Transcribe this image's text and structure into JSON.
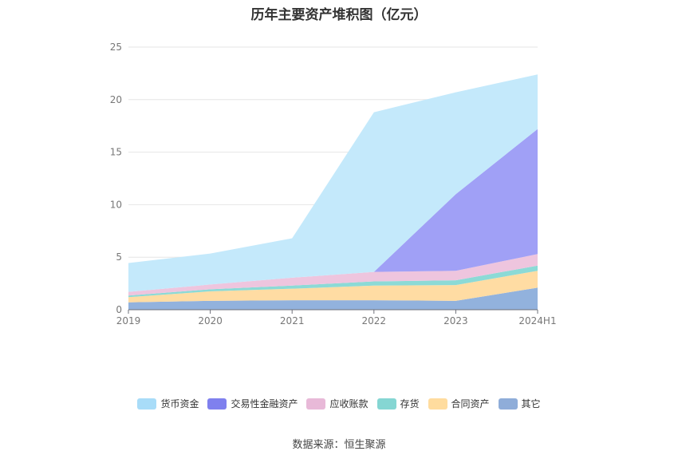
{
  "chart_data": {
    "type": "area",
    "stacked": true,
    "title": "历年主要资产堆积图（亿元）",
    "categories": [
      "2019",
      "2020",
      "2021",
      "2022",
      "2023",
      "2024H1"
    ],
    "ylim": [
      0,
      25
    ],
    "yticks": [
      0,
      5,
      10,
      15,
      20,
      25
    ],
    "grid": true,
    "legend_position": "bottom",
    "series": [
      {
        "name": "其它",
        "color": "#92b2dd",
        "values": [
          0.7,
          0.85,
          0.9,
          0.9,
          0.85,
          2.1
        ]
      },
      {
        "name": "合同资产",
        "color": "#ffdca3",
        "values": [
          0.5,
          0.9,
          1.1,
          1.4,
          1.5,
          1.6
        ]
      },
      {
        "name": "存货",
        "color": "#8cdad6",
        "values": [
          0.15,
          0.2,
          0.3,
          0.4,
          0.45,
          0.5
        ]
      },
      {
        "name": "应收账款",
        "color": "#eec5de",
        "values": [
          0.35,
          0.45,
          0.75,
          0.9,
          0.9,
          1.1
        ]
      },
      {
        "name": "交易性金融资产",
        "color": "#a0a0f6",
        "values": [
          0,
          0,
          0,
          0,
          7.3,
          11.9
        ]
      },
      {
        "name": "货币资金",
        "color": "#c4e9fb",
        "values": [
          2.75,
          2.95,
          3.75,
          15.2,
          9.7,
          5.2
        ]
      }
    ]
  },
  "legend": [
    {
      "label": "货币资金",
      "color": "#a8dcf8"
    },
    {
      "label": "交易性金融资产",
      "color": "#7f80ee"
    },
    {
      "label": "应收账款",
      "color": "#e8b9d8"
    },
    {
      "label": "存货",
      "color": "#85d6d3"
    },
    {
      "label": "合同资产",
      "color": "#ffdc9e"
    },
    {
      "label": "其它",
      "color": "#8fadd9"
    }
  ],
  "source": "数据来源：恒生聚源"
}
